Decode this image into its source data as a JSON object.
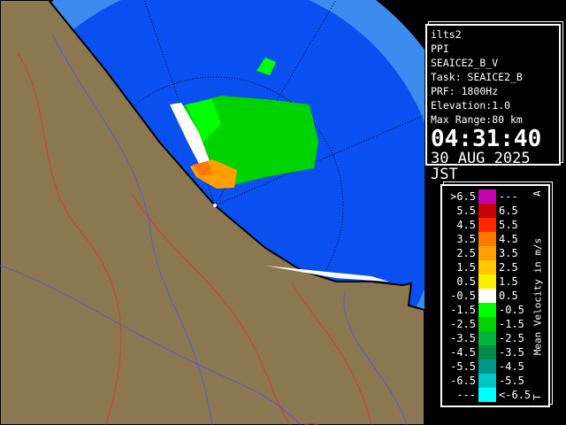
{
  "info": {
    "radar": "ilts2",
    "scan_type": "PPI",
    "product": "SEAICE2_B_V",
    "task": "Task: SEAICE2_B",
    "prf": "PRF: 1800Hz",
    "elevation": "Elevation:1.0",
    "max_range": "Max Range:80 km",
    "time": "04:31:40",
    "date": "30 AUG 2025 JST"
  },
  "legend": {
    "title": "Mean Velocity in m/s",
    "top_mark": "A",
    "bottom_mark": "T",
    "rows": [
      {
        "low": ">6.5",
        "high": "---",
        "color": "#c800b4"
      },
      {
        "low": "5.5",
        "high": "6.5",
        "color": "#c80000"
      },
      {
        "low": "4.5",
        "high": "5.5",
        "color": "#ff2800"
      },
      {
        "low": "3.5",
        "high": "4.5",
        "color": "#ff7800"
      },
      {
        "low": "2.5",
        "high": "3.5",
        "color": "#ffa000"
      },
      {
        "low": "1.5",
        "high": "2.5",
        "color": "#ffc800"
      },
      {
        "low": "0.5",
        "high": "1.5",
        "color": "#fff000"
      },
      {
        "low": "-0.5",
        "high": "0.5",
        "color": "#ffffff"
      },
      {
        "low": "-1.5",
        "high": "-0.5",
        "color": "#00ff00"
      },
      {
        "low": "-2.5",
        "high": "-1.5",
        "color": "#00d200"
      },
      {
        "low": "-3.5",
        "high": "-2.5",
        "color": "#00b43c"
      },
      {
        "low": "-4.5",
        "high": "-3.5",
        "color": "#008c46"
      },
      {
        "low": "-5.5",
        "high": "-4.5",
        "color": "#00968c"
      },
      {
        "low": "-6.5",
        "high": "-5.5",
        "color": "#00c8c8"
      },
      {
        "low": "---",
        "high": "<-6.5",
        "color": "#00ffff"
      }
    ]
  },
  "map_colors": {
    "outer_range": "#3c8cf0",
    "inner_range": "#0050f0",
    "land": "#8c7850"
  }
}
